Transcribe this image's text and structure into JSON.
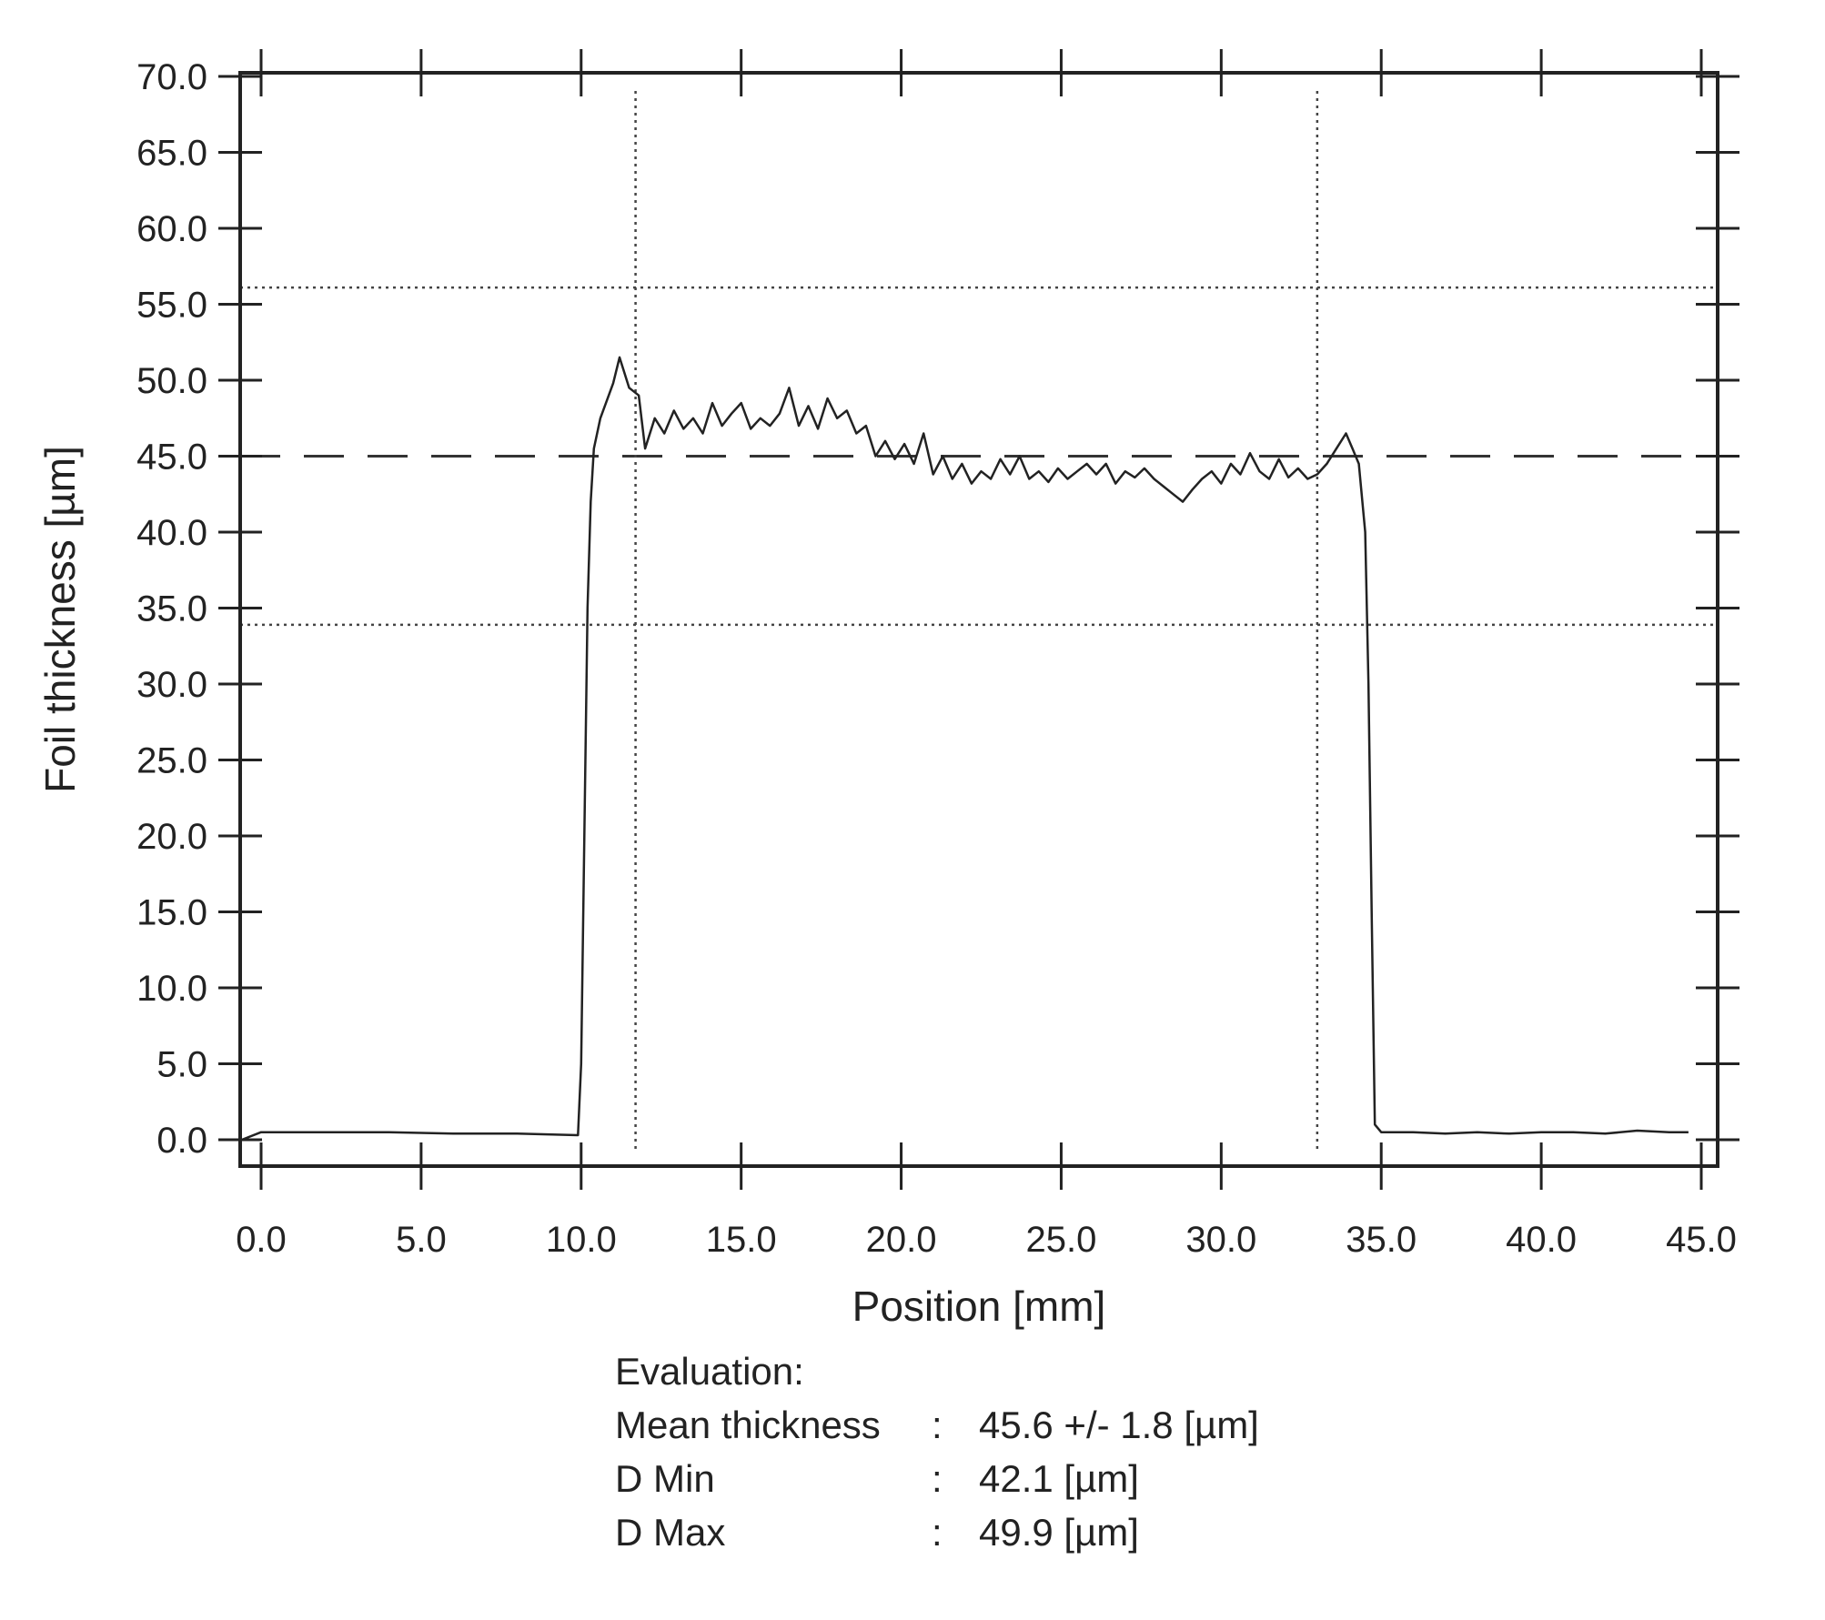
{
  "chart_data": {
    "type": "line",
    "xlabel": "Position [mm]",
    "ylabel": "Foil thickness [µm]",
    "xlim": [
      0,
      45
    ],
    "ylim": [
      0,
      70
    ],
    "x_ticks": [
      "0.0",
      "5.0",
      "10.0",
      "15.0",
      "20.0",
      "25.0",
      "30.0",
      "35.0",
      "40.0",
      "45.0"
    ],
    "y_ticks": [
      "0.0",
      "5.0",
      "10.0",
      "15.0",
      "20.0",
      "25.0",
      "30.0",
      "35.0",
      "40.0",
      "45.0",
      "50.0",
      "55.0",
      "60.0",
      "65.0",
      "70.0"
    ],
    "grid": false,
    "reference_lines": {
      "mean_dashed_y": 45.0,
      "lower_dotted_y": 33.9,
      "upper_dotted_y": 56.1,
      "vertical_dotted_x": [
        11.7,
        33.0
      ]
    },
    "series": [
      {
        "x": [
          -0.6,
          0.0,
          2.0,
          4.0,
          6.0,
          8.0,
          9.9,
          10.0,
          10.1,
          10.2,
          10.3,
          10.4,
          10.6,
          11.0,
          11.2,
          11.5,
          11.8,
          12.0,
          12.3,
          12.6,
          12.9,
          13.2,
          13.5,
          13.8,
          14.1,
          14.4,
          14.7,
          15.0,
          15.3,
          15.6,
          15.9,
          16.2,
          16.5,
          16.8,
          17.1,
          17.4,
          17.7,
          18.0,
          18.3,
          18.6,
          18.9,
          19.2,
          19.5,
          19.8,
          20.1,
          20.4,
          20.7,
          21.0,
          21.3,
          21.6,
          21.9,
          22.2,
          22.5,
          22.8,
          23.1,
          23.4,
          23.7,
          24.0,
          24.3,
          24.6,
          24.9,
          25.2,
          25.5,
          25.8,
          26.1,
          26.4,
          26.7,
          27.0,
          27.3,
          27.6,
          27.9,
          28.2,
          28.5,
          28.8,
          29.1,
          29.4,
          29.7,
          30.0,
          30.3,
          30.6,
          30.9,
          31.2,
          31.5,
          31.8,
          32.1,
          32.4,
          32.7,
          33.0,
          33.3,
          33.6,
          33.9,
          34.1,
          34.3,
          34.5,
          34.6,
          34.7,
          34.8,
          35.0,
          36.0,
          37.0,
          38.0,
          39.0,
          40.0,
          41.0,
          42.0,
          43.0,
          44.0,
          44.6
        ],
        "values": [
          0.0,
          0.5,
          0.5,
          0.5,
          0.4,
          0.4,
          0.3,
          5.0,
          20.0,
          35.0,
          42.0,
          45.5,
          47.5,
          49.8,
          51.5,
          49.5,
          49.0,
          45.5,
          47.5,
          46.5,
          48.0,
          46.8,
          47.5,
          46.5,
          48.5,
          47.0,
          47.8,
          48.5,
          46.8,
          47.5,
          47.0,
          47.8,
          49.5,
          47.0,
          48.3,
          46.8,
          48.8,
          47.5,
          48.0,
          46.5,
          47.0,
          45.0,
          46.0,
          44.8,
          45.8,
          44.5,
          46.5,
          43.8,
          45.0,
          43.5,
          44.5,
          43.2,
          44.0,
          43.5,
          44.8,
          43.8,
          45.0,
          43.5,
          44.0,
          43.3,
          44.2,
          43.5,
          44.0,
          44.5,
          43.8,
          44.5,
          43.2,
          44.0,
          43.6,
          44.2,
          43.5,
          43.0,
          42.5,
          42.0,
          42.8,
          43.5,
          44.0,
          43.2,
          44.5,
          43.8,
          45.2,
          44.0,
          43.5,
          44.8,
          43.6,
          44.2,
          43.5,
          43.8,
          44.5,
          45.5,
          46.5,
          45.5,
          44.5,
          40.0,
          30.0,
          15.0,
          1.0,
          0.5,
          0.5,
          0.4,
          0.5,
          0.4,
          0.5,
          0.5,
          0.4,
          0.6,
          0.5,
          0.5
        ]
      }
    ]
  },
  "evaluation": {
    "heading": "Evaluation:",
    "rows": [
      {
        "label": "Mean thickness",
        "sep": ":",
        "value": "45.6 +/- 1.8 [µm]"
      },
      {
        "label": "D Min",
        "sep": ":",
        "value": "42.1 [µm]"
      },
      {
        "label": "D Max",
        "sep": ":",
        "value": "49.9 [µm]"
      }
    ]
  }
}
